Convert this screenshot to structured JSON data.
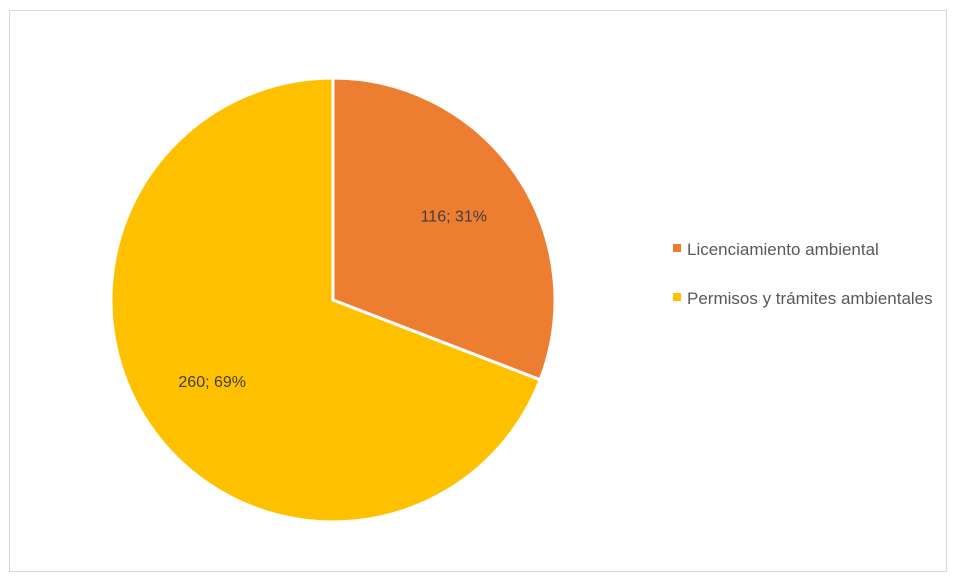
{
  "chart_data": {
    "type": "pie",
    "title": "",
    "slices": [
      {
        "name": "Licenciamiento ambiental",
        "value": 116,
        "percent": 31,
        "label": "116; 31%",
        "color": "#ED7D31"
      },
      {
        "name": "Permisos y trámites ambientales",
        "value": 260,
        "percent": 69,
        "label": "260; 69%",
        "color": "#FFC000"
      }
    ],
    "start_angle_deg": 0,
    "direction": "clockwise",
    "legend_position": "right"
  }
}
